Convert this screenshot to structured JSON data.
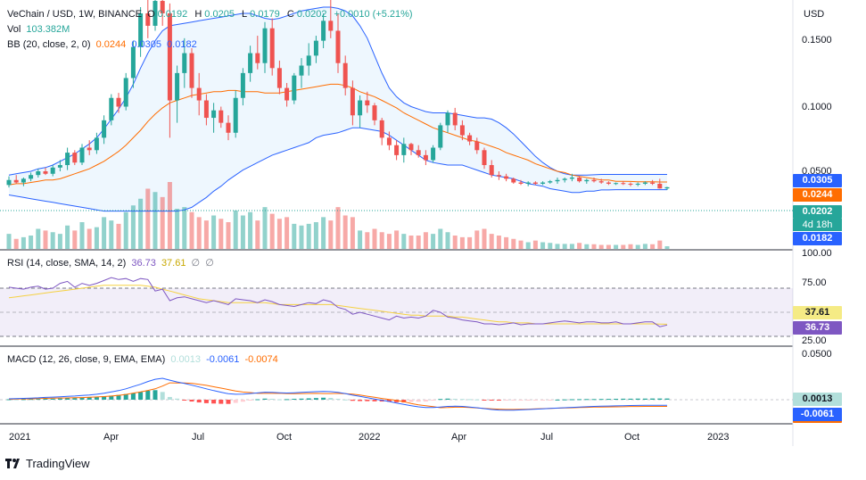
{
  "header": {
    "symbol": "VeChain / USD, 1W, BINANCE",
    "open_label": "O",
    "open": "0.0192",
    "high_label": "H",
    "high": "0.0205",
    "low_label": "L",
    "low": "0.0179",
    "close_label": "C",
    "close": "0.0202",
    "change": "+0.0010 (+5.21%)",
    "vol_label": "Vol",
    "vol": "103.382M",
    "bb_label": "BB (20, close, 2, 0)",
    "bb_basis": "0.0244",
    "bb_upper": "0.0305",
    "bb_lower": "0.0182"
  },
  "rsi_legend": {
    "label": "RSI (14, close, SMA, 14, 2)",
    "rsi": "36.73",
    "sma": "37.61",
    "z1": "∅",
    "z2": "∅"
  },
  "macd_legend": {
    "label": "MACD (12, 26, close, 9, EMA, EMA)",
    "hist": "0.0013",
    "macd": "-0.0061",
    "signal": "-0.0074"
  },
  "price_axis": {
    "currency": "USD",
    "ticks": [
      "0.1500",
      "0.1000",
      "0.0500"
    ],
    "scale_label": "100.00"
  },
  "price_tags": {
    "upper": "0.0305",
    "basis": "0.0244",
    "price": "0.0202",
    "countdown": "4d 18h",
    "lower": "0.0182"
  },
  "rsi_axis": {
    "ticks": [
      "75.00",
      "25.00"
    ],
    "tag_sma": "37.61",
    "tag_rsi": "36.73"
  },
  "macd_axis": {
    "ticks": [
      "0.0500"
    ],
    "tag_hist": "0.0013",
    "tag_macd": "-0.0061"
  },
  "time_axis": [
    "2021",
    "Apr",
    "Jul",
    "Oct",
    "2022",
    "Apr",
    "Jul",
    "Oct",
    "2023"
  ],
  "brand": "TradingView",
  "colors": {
    "up": "#26a69a",
    "down": "#ef5350",
    "bb_band": "#2962ff",
    "bb_basis": "#ff6d00",
    "rsi": "#7e57c2",
    "rsi_ma": "#f5d142",
    "macd": "#2962ff",
    "signal": "#ff6d00"
  },
  "chart_data": {
    "type": "candlestick",
    "timeframe": "1W",
    "y_range": [
      0,
      0.165
    ],
    "candles": [
      [
        0.022,
        0.029,
        0.02,
        0.026
      ],
      [
        0.026,
        0.03,
        0.023,
        0.024
      ],
      [
        0.024,
        0.028,
        0.021,
        0.027
      ],
      [
        0.027,
        0.032,
        0.025,
        0.03
      ],
      [
        0.03,
        0.035,
        0.028,
        0.033
      ],
      [
        0.033,
        0.036,
        0.03,
        0.031
      ],
      [
        0.031,
        0.038,
        0.029,
        0.036
      ],
      [
        0.036,
        0.042,
        0.033,
        0.038
      ],
      [
        0.038,
        0.052,
        0.034,
        0.048
      ],
      [
        0.048,
        0.05,
        0.038,
        0.04
      ],
      [
        0.04,
        0.055,
        0.038,
        0.052
      ],
      [
        0.052,
        0.058,
        0.046,
        0.05
      ],
      [
        0.05,
        0.064,
        0.047,
        0.06
      ],
      [
        0.06,
        0.078,
        0.055,
        0.074
      ],
      [
        0.074,
        0.095,
        0.07,
        0.092
      ],
      [
        0.092,
        0.096,
        0.08,
        0.085
      ],
      [
        0.085,
        0.112,
        0.082,
        0.108
      ],
      [
        0.108,
        0.138,
        0.1,
        0.133
      ],
      [
        0.133,
        0.165,
        0.125,
        0.16
      ],
      [
        0.16,
        0.175,
        0.14,
        0.15
      ],
      [
        0.15,
        0.178,
        0.146,
        0.17
      ],
      [
        0.17,
        0.185,
        0.15,
        0.16
      ],
      [
        0.16,
        0.168,
        0.06,
        0.09
      ],
      [
        0.09,
        0.118,
        0.072,
        0.112
      ],
      [
        0.112,
        0.14,
        0.1,
        0.128
      ],
      [
        0.128,
        0.132,
        0.092,
        0.1
      ],
      [
        0.1,
        0.112,
        0.078,
        0.09
      ],
      [
        0.09,
        0.095,
        0.07,
        0.076
      ],
      [
        0.076,
        0.088,
        0.064,
        0.082
      ],
      [
        0.082,
        0.085,
        0.068,
        0.072
      ],
      [
        0.072,
        0.078,
        0.058,
        0.064
      ],
      [
        0.064,
        0.098,
        0.06,
        0.092
      ],
      [
        0.092,
        0.116,
        0.086,
        0.112
      ],
      [
        0.112,
        0.134,
        0.105,
        0.128
      ],
      [
        0.128,
        0.142,
        0.115,
        0.12
      ],
      [
        0.12,
        0.153,
        0.112,
        0.148
      ],
      [
        0.148,
        0.156,
        0.11,
        0.116
      ],
      [
        0.116,
        0.122,
        0.095,
        0.1
      ],
      [
        0.1,
        0.104,
        0.085,
        0.09
      ],
      [
        0.09,
        0.112,
        0.087,
        0.11
      ],
      [
        0.11,
        0.124,
        0.1,
        0.118
      ],
      [
        0.118,
        0.136,
        0.11,
        0.126
      ],
      [
        0.126,
        0.142,
        0.12,
        0.138
      ],
      [
        0.138,
        0.16,
        0.132,
        0.154
      ],
      [
        0.154,
        0.172,
        0.14,
        0.146
      ],
      [
        0.146,
        0.16,
        0.112,
        0.12
      ],
      [
        0.12,
        0.126,
        0.094,
        0.1
      ],
      [
        0.1,
        0.106,
        0.07,
        0.078
      ],
      [
        0.078,
        0.094,
        0.068,
        0.09
      ],
      [
        0.09,
        0.097,
        0.08,
        0.086
      ],
      [
        0.086,
        0.088,
        0.07,
        0.074
      ],
      [
        0.074,
        0.076,
        0.054,
        0.06
      ],
      [
        0.06,
        0.065,
        0.05,
        0.054
      ],
      [
        0.054,
        0.058,
        0.042,
        0.046
      ],
      [
        0.046,
        0.06,
        0.04,
        0.055
      ],
      [
        0.055,
        0.056,
        0.046,
        0.05
      ],
      [
        0.05,
        0.054,
        0.044,
        0.046
      ],
      [
        0.046,
        0.05,
        0.038,
        0.042
      ],
      [
        0.042,
        0.054,
        0.04,
        0.052
      ],
      [
        0.052,
        0.072,
        0.05,
        0.07
      ],
      [
        0.07,
        0.082,
        0.064,
        0.08
      ],
      [
        0.08,
        0.084,
        0.066,
        0.07
      ],
      [
        0.07,
        0.074,
        0.058,
        0.062
      ],
      [
        0.062,
        0.064,
        0.054,
        0.057
      ],
      [
        0.057,
        0.06,
        0.047,
        0.05
      ],
      [
        0.05,
        0.052,
        0.035,
        0.038
      ],
      [
        0.038,
        0.042,
        0.028,
        0.03
      ],
      [
        0.03,
        0.033,
        0.026,
        0.029
      ],
      [
        0.029,
        0.031,
        0.025,
        0.027
      ],
      [
        0.027,
        0.028,
        0.023,
        0.024
      ],
      [
        0.024,
        0.026,
        0.022,
        0.023
      ],
      [
        0.023,
        0.025,
        0.021,
        0.024
      ],
      [
        0.024,
        0.025,
        0.022,
        0.023
      ],
      [
        0.023,
        0.025,
        0.022,
        0.024
      ],
      [
        0.024,
        0.026,
        0.023,
        0.025
      ],
      [
        0.025,
        0.028,
        0.023,
        0.026
      ],
      [
        0.026,
        0.028,
        0.024,
        0.027
      ],
      [
        0.027,
        0.031,
        0.025,
        0.028
      ],
      [
        0.028,
        0.029,
        0.024,
        0.025
      ],
      [
        0.025,
        0.027,
        0.023,
        0.026
      ],
      [
        0.026,
        0.028,
        0.024,
        0.025
      ],
      [
        0.025,
        0.027,
        0.023,
        0.024
      ],
      [
        0.024,
        0.025,
        0.022,
        0.023
      ],
      [
        0.023,
        0.024,
        0.022,
        0.0235
      ],
      [
        0.0235,
        0.025,
        0.022,
        0.023
      ],
      [
        0.023,
        0.024,
        0.021,
        0.0225
      ],
      [
        0.0225,
        0.024,
        0.021,
        0.023
      ],
      [
        0.023,
        0.025,
        0.022,
        0.024
      ],
      [
        0.024,
        0.026,
        0.022,
        0.023
      ],
      [
        0.023,
        0.027,
        0.019,
        0.0192
      ],
      [
        0.0192,
        0.0205,
        0.0179,
        0.0202
      ]
    ],
    "bb_upper": [
      0.03,
      0.031,
      0.032,
      0.033,
      0.035,
      0.036,
      0.038,
      0.041,
      0.044,
      0.047,
      0.051,
      0.055,
      0.06,
      0.067,
      0.075,
      0.083,
      0.092,
      0.103,
      0.116,
      0.128,
      0.138,
      0.146,
      0.15,
      0.151,
      0.152,
      0.153,
      0.154,
      0.155,
      0.156,
      0.157,
      0.158,
      0.159,
      0.16,
      0.16,
      0.158,
      0.156,
      0.155,
      0.156,
      0.158,
      0.16,
      0.162,
      0.163,
      0.164,
      0.165,
      0.165,
      0.164,
      0.162,
      0.158,
      0.15,
      0.14,
      0.126,
      0.112,
      0.1,
      0.093,
      0.088,
      0.085,
      0.083,
      0.081,
      0.08,
      0.08,
      0.08,
      0.079,
      0.078,
      0.077,
      0.076,
      0.076,
      0.075,
      0.072,
      0.068,
      0.063,
      0.057,
      0.051,
      0.045,
      0.04,
      0.036,
      0.033,
      0.031,
      0.03,
      0.03,
      0.03,
      0.0302,
      0.0305,
      0.0305,
      0.0305,
      0.0305,
      0.0305,
      0.0305,
      0.0305,
      0.0305,
      0.0305,
      0.0305
    ],
    "bb_basis": [
      0.022,
      0.023,
      0.023,
      0.024,
      0.025,
      0.026,
      0.026,
      0.027,
      0.029,
      0.031,
      0.033,
      0.035,
      0.038,
      0.041,
      0.045,
      0.049,
      0.054,
      0.06,
      0.066,
      0.073,
      0.079,
      0.084,
      0.088,
      0.09,
      0.092,
      0.094,
      0.095,
      0.096,
      0.097,
      0.097,
      0.098,
      0.098,
      0.097,
      0.097,
      0.097,
      0.096,
      0.096,
      0.096,
      0.097,
      0.098,
      0.099,
      0.1,
      0.101,
      0.102,
      0.103,
      0.103,
      0.102,
      0.1,
      0.097,
      0.095,
      0.093,
      0.09,
      0.087,
      0.084,
      0.08,
      0.077,
      0.074,
      0.071,
      0.068,
      0.066,
      0.064,
      0.062,
      0.06,
      0.058,
      0.057,
      0.055,
      0.053,
      0.051,
      0.048,
      0.046,
      0.044,
      0.042,
      0.039,
      0.037,
      0.035,
      0.033,
      0.032,
      0.03,
      0.029,
      0.028,
      0.027,
      0.026,
      0.026,
      0.025,
      0.025,
      0.0248,
      0.0246,
      0.0245,
      0.0245,
      0.0244,
      0.0244
    ],
    "bb_lower": [
      0.014,
      0.013,
      0.012,
      0.011,
      0.01,
      0.009,
      0.008,
      0.007,
      0.006,
      0.005,
      0.004,
      0.003,
      0.002,
      0.001,
      0.001,
      0.001,
      0.001,
      0.001,
      0.001,
      0.001,
      0.001,
      0.001,
      0.001,
      0.001,
      0.002,
      0.004,
      0.008,
      0.012,
      0.017,
      0.021,
      0.026,
      0.03,
      0.034,
      0.037,
      0.04,
      0.043,
      0.046,
      0.048,
      0.05,
      0.052,
      0.054,
      0.056,
      0.06,
      0.062,
      0.063,
      0.064,
      0.066,
      0.068,
      0.068,
      0.067,
      0.066,
      0.065,
      0.062,
      0.058,
      0.054,
      0.05,
      0.046,
      0.042,
      0.04,
      0.039,
      0.038,
      0.038,
      0.038,
      0.036,
      0.034,
      0.032,
      0.03,
      0.029,
      0.028,
      0.027,
      0.025,
      0.023,
      0.022,
      0.021,
      0.019,
      0.018,
      0.017,
      0.016,
      0.016,
      0.017,
      0.017,
      0.018,
      0.018,
      0.0182,
      0.0182,
      0.0182,
      0.0182,
      0.0182,
      0.0182,
      0.0182,
      0.0182
    ],
    "volume": [
      45,
      30,
      35,
      40,
      60,
      55,
      50,
      45,
      70,
      55,
      80,
      60,
      65,
      95,
      85,
      75,
      110,
      130,
      150,
      180,
      170,
      155,
      200,
      120,
      125,
      110,
      95,
      85,
      100,
      90,
      80,
      115,
      100,
      110,
      85,
      125,
      105,
      90,
      95,
      75,
      70,
      75,
      80,
      95,
      85,
      125,
      100,
      95,
      55,
      50,
      60,
      50,
      45,
      55,
      45,
      40,
      40,
      50,
      45,
      60,
      50,
      40,
      35,
      35,
      55,
      60,
      45,
      40,
      35,
      30,
      25,
      20,
      25,
      20,
      18,
      15,
      15,
      15,
      18,
      14,
      14,
      12,
      12,
      12,
      12,
      14,
      12,
      15,
      14,
      25,
      8
    ],
    "rsi": [
      76,
      75,
      74,
      76,
      77,
      74,
      75,
      80,
      82,
      76,
      80,
      78,
      80,
      83,
      86,
      84,
      85,
      82,
      85,
      84,
      72,
      74,
      62,
      65,
      66,
      64,
      62,
      60,
      62,
      60,
      58,
      64,
      63,
      62,
      60,
      63,
      61,
      58,
      57,
      56,
      58,
      60,
      59,
      63,
      61,
      55,
      53,
      48,
      50,
      48,
      46,
      44,
      42,
      46,
      44,
      45,
      44,
      46,
      52,
      50,
      45,
      44,
      42,
      41,
      40,
      38,
      38,
      37,
      38,
      39,
      37,
      38,
      38,
      38,
      39,
      40,
      41,
      40,
      39,
      40,
      40,
      39,
      39,
      40,
      38,
      38,
      39,
      40,
      40,
      35,
      36.73
    ],
    "rsi_ma": [
      65,
      66,
      67,
      68,
      69,
      70,
      71,
      72,
      73,
      74,
      75,
      76,
      77,
      78,
      78,
      78,
      78,
      78,
      78,
      77,
      76,
      74,
      72,
      70,
      68,
      66,
      64,
      63,
      62,
      61,
      60,
      60,
      60,
      60,
      60,
      60,
      59,
      58,
      58,
      58,
      58,
      58,
      58,
      58,
      58,
      57,
      56,
      55,
      54,
      53,
      52,
      51,
      50,
      49,
      48,
      47,
      47,
      46,
      46,
      46,
      46,
      45,
      45,
      44,
      43,
      42,
      41,
      40,
      40,
      39,
      39,
      39,
      38,
      38,
      38,
      38,
      38,
      38,
      38,
      38,
      38,
      38,
      38,
      38,
      38,
      38,
      38,
      38,
      38,
      37.8,
      37.61
    ],
    "macd_hist": [
      0.0005,
      0.0004,
      0.0006,
      0.0008,
      0.0009,
      0.001,
      0.0011,
      0.0013,
      0.0016,
      0.0018,
      0.0022,
      0.0026,
      0.003,
      0.0038,
      0.0045,
      0.0052,
      0.0062,
      0.0072,
      0.0085,
      0.0098,
      0.0105,
      0.0085,
      0.003,
      0.0012,
      -0.0005,
      -0.002,
      -0.003,
      -0.0038,
      -0.0042,
      -0.0045,
      -0.0046,
      -0.0035,
      -0.0022,
      -0.001,
      0.0005,
      0.0012,
      0.001,
      0.0004,
      0.0006,
      0.001,
      0.0012,
      0.0015,
      0.0018,
      0.0022,
      0.002,
      0.001,
      0.0002,
      -0.0012,
      -0.0015,
      -0.0016,
      -0.0018,
      -0.002,
      -0.0022,
      -0.0028,
      -0.003,
      -0.0025,
      -0.0022,
      -0.002,
      -0.001,
      0.0008,
      0.0012,
      0.001,
      0.0008,
      0.0006,
      0.0003,
      -0.0003,
      -0.0008,
      -0.001,
      -0.0009,
      -0.0008,
      -0.0006,
      -0.0004,
      -0.0003,
      -0.0002,
      -0.0001,
      0.0001,
      0.0003,
      0.0005,
      0.0006,
      0.0007,
      0.0007,
      0.0008,
      0.0009,
      0.001,
      0.0011,
      0.0011,
      0.0012,
      0.0012,
      0.0013,
      0.0013,
      0.0013
    ],
    "macd_line": [
      0.001,
      0.0012,
      0.0015,
      0.0018,
      0.0021,
      0.0025,
      0.0028,
      0.0032,
      0.0036,
      0.004,
      0.0046,
      0.0052,
      0.006,
      0.0072,
      0.0085,
      0.01,
      0.012,
      0.0145,
      0.017,
      0.02,
      0.0225,
      0.0235,
      0.0215,
      0.0195,
      0.0178,
      0.016,
      0.014,
      0.012,
      0.01,
      0.0082,
      0.0066,
      0.006,
      0.0062,
      0.0068,
      0.0075,
      0.0082,
      0.008,
      0.0076,
      0.0074,
      0.0076,
      0.008,
      0.0084,
      0.0088,
      0.009,
      0.0088,
      0.008,
      0.0068,
      0.005,
      0.0036,
      0.0022,
      0.0008,
      -0.0006,
      -0.002,
      -0.0036,
      -0.0052,
      -0.0066,
      -0.0078,
      -0.0086,
      -0.0086,
      -0.008,
      -0.0074,
      -0.0072,
      -0.0074,
      -0.008,
      -0.0088,
      -0.0098,
      -0.0108,
      -0.0114,
      -0.0116,
      -0.0115,
      -0.0112,
      -0.0108,
      -0.0104,
      -0.01,
      -0.0096,
      -0.0092,
      -0.0088,
      -0.0084,
      -0.008,
      -0.0077,
      -0.0074,
      -0.0072,
      -0.007,
      -0.0068,
      -0.0066,
      -0.0064,
      -0.0063,
      -0.0062,
      -0.0061,
      -0.0061,
      -0.0061
    ],
    "macd_signal": [
      0.0005,
      0.0008,
      0.0009,
      0.001,
      0.0012,
      0.0015,
      0.0017,
      0.0019,
      0.002,
      0.0022,
      0.0024,
      0.0026,
      0.003,
      0.0034,
      0.004,
      0.0048,
      0.0058,
      0.0073,
      0.0085,
      0.0102,
      0.012,
      0.015,
      0.0185,
      0.0183,
      0.0183,
      0.018,
      0.017,
      0.0158,
      0.0142,
      0.0127,
      0.0112,
      0.0095,
      0.0084,
      0.0078,
      0.007,
      0.007,
      0.007,
      0.0072,
      0.0068,
      0.0066,
      0.0068,
      0.0069,
      0.007,
      0.0068,
      0.0068,
      0.007,
      0.0066,
      0.0062,
      0.0051,
      0.0038,
      0.0026,
      0.0014,
      0.0002,
      -0.0008,
      -0.0022,
      -0.0041,
      -0.0056,
      -0.0066,
      -0.0076,
      -0.0088,
      -0.0086,
      -0.0082,
      -0.0082,
      -0.0086,
      -0.0091,
      -0.0095,
      -0.01,
      -0.0104,
      -0.0107,
      -0.0107,
      -0.0106,
      -0.0104,
      -0.0101,
      -0.0098,
      -0.0095,
      -0.0093,
      -0.0091,
      -0.0089,
      -0.0086,
      -0.0084,
      -0.0081,
      -0.008,
      -0.0079,
      -0.0078,
      -0.0077,
      -0.0075,
      -0.0075,
      -0.0074,
      -0.0074,
      -0.0074,
      -0.0074
    ]
  }
}
